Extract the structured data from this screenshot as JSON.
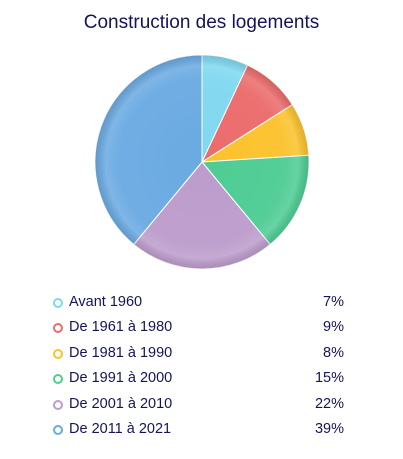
{
  "chart_data": {
    "type": "pie",
    "title": "Construction des logements",
    "slices": [
      {
        "label": "Avant 1960",
        "value": 7,
        "value_label": "7%",
        "color": "#80d8f0"
      },
      {
        "label": "De 1961 à 1980",
        "value": 9,
        "value_label": "9%",
        "color": "#ec6b6b"
      },
      {
        "label": "De 1981 à 1990",
        "value": 8,
        "value_label": "8%",
        "color": "#fcc22c"
      },
      {
        "label": "De 1991 à 2000",
        "value": 15,
        "value_label": "15%",
        "color": "#4ecc94"
      },
      {
        "label": "De 2001 à 2010",
        "value": 22,
        "value_label": "22%",
        "color": "#bc9ccc"
      },
      {
        "label": "De 2011 à 2021",
        "value": 39,
        "value_label": "39%",
        "color": "#6aaae2"
      }
    ],
    "legend_position": "bottom"
  }
}
